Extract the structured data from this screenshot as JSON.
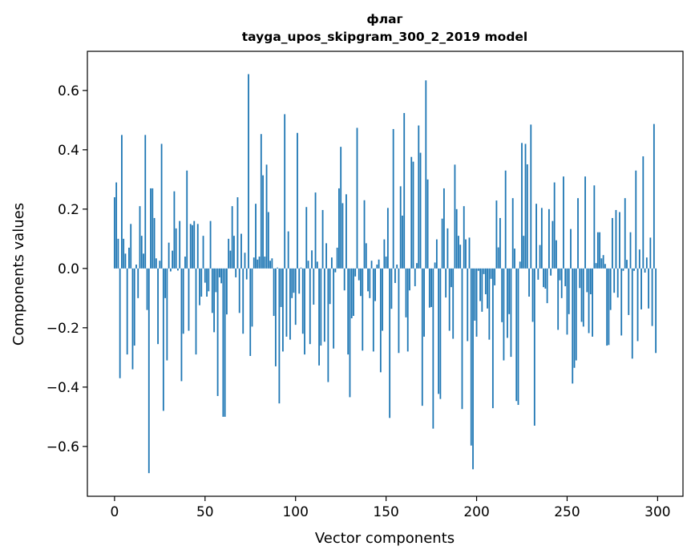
{
  "chart_data": {
    "type": "bar",
    "title": "флаг",
    "subtitle": "tayga_upos_skipgram_300_2_2019 model",
    "xlabel": "Vector components",
    "ylabel": "Components values",
    "xlim": [
      -15,
      314
    ],
    "ylim": [
      -0.768,
      0.732
    ],
    "xticks": [
      0,
      50,
      100,
      150,
      200,
      250,
      300
    ],
    "xtick_labels": [
      "0",
      "50",
      "100",
      "150",
      "200",
      "250",
      "300"
    ],
    "yticks": [
      -0.6,
      -0.4,
      -0.2,
      0.0,
      0.2,
      0.4,
      0.6
    ],
    "ytick_labels": [
      "−0.6",
      "−0.4",
      "−0.2",
      "0.0",
      "0.2",
      "0.4",
      "0.6"
    ],
    "grid": false,
    "bar_color": "#1f77b4",
    "values": [
      0.24,
      0.29,
      0.1,
      -0.37,
      0.45,
      0.1,
      0.05,
      -0.29,
      0.07,
      0.15,
      -0.34,
      -0.26,
      0.013,
      -0.1,
      0.21,
      0.11,
      0.05,
      0.45,
      -0.14,
      -0.69,
      0.27,
      0.27,
      0.17,
      0.034,
      -0.255,
      0.026,
      0.42,
      -0.48,
      -0.1,
      -0.31,
      0.087,
      -0.01,
      0.06,
      0.26,
      0.135,
      -0.007,
      0.16,
      -0.38,
      -0.22,
      0.04,
      0.33,
      -0.21,
      0.15,
      0.146,
      0.16,
      -0.29,
      0.15,
      -0.124,
      -0.095,
      0.11,
      -0.048,
      -0.095,
      -0.077,
      0.16,
      -0.15,
      -0.215,
      -0.08,
      -0.43,
      -0.03,
      -0.05,
      -0.5,
      -0.5,
      -0.155,
      0.1,
      0.06,
      0.21,
      0.11,
      -0.03,
      0.24,
      -0.15,
      0.117,
      -0.22,
      0.053,
      -0.037,
      0.655,
      -0.295,
      -0.196,
      0.037,
      0.218,
      0.03,
      0.04,
      0.453,
      0.314,
      0.04,
      0.35,
      0.19,
      0.026,
      0.034,
      -0.16,
      -0.33,
      0.003,
      -0.455,
      -0.13,
      -0.28,
      0.52,
      -0.23,
      0.125,
      -0.24,
      -0.1,
      -0.082,
      -0.19,
      0.457,
      -0.085,
      0.003,
      -0.22,
      -0.29,
      0.207,
      0.026,
      -0.255,
      0.061,
      -0.122,
      0.256,
      0.023,
      -0.327,
      -0.26,
      0.197,
      -0.247,
      0.085,
      -0.383,
      -0.12,
      0.037,
      -0.27,
      -0.013,
      0.07,
      0.27,
      0.41,
      0.22,
      -0.074,
      0.25,
      -0.29,
      -0.434,
      -0.168,
      -0.16,
      -0.027,
      0.474,
      -0.04,
      -0.093,
      -0.277,
      0.23,
      0.085,
      -0.077,
      -0.1,
      0.026,
      -0.28,
      -0.11,
      0.013,
      0.03,
      -0.35,
      -0.21,
      0.098,
      0.04,
      0.204,
      -0.504,
      -0.136,
      0.47,
      -0.049,
      0.013,
      -0.285,
      0.277,
      0.178,
      0.524,
      -0.165,
      -0.28,
      -0.074,
      0.376,
      0.36,
      -0.06,
      0.018,
      0.482,
      0.39,
      -0.463,
      -0.23,
      0.634,
      0.3,
      -0.132,
      -0.13,
      -0.54,
      0.02,
      0.098,
      -0.423,
      -0.44,
      0.168,
      0.27,
      -0.098,
      0.135,
      -0.21,
      -0.063,
      -0.237,
      0.35,
      0.2,
      0.11,
      0.08,
      -0.474,
      0.21,
      0.098,
      -0.245,
      0.104,
      -0.597,
      -0.677,
      -0.176,
      -0.23,
      -0.008,
      -0.11,
      -0.146,
      -0.019,
      -0.087,
      -0.135,
      -0.24,
      -0.035,
      -0.471,
      -0.057,
      0.229,
      0.071,
      0.17,
      -0.181,
      -0.31,
      0.33,
      -0.234,
      -0.154,
      -0.298,
      0.237,
      0.067,
      -0.447,
      -0.46,
      0.023,
      0.423,
      0.11,
      0.42,
      0.351,
      -0.095,
      0.485,
      -0.18,
      -0.53,
      0.218,
      -0.038,
      0.079,
      0.204,
      -0.063,
      -0.068,
      -0.117,
      0.2,
      -0.024,
      0.16,
      0.29,
      0.095,
      -0.207,
      -0.04,
      -0.1,
      0.31,
      -0.06,
      -0.223,
      -0.154,
      0.133,
      -0.388,
      -0.335,
      -0.31,
      0.237,
      -0.066,
      -0.18,
      -0.196,
      0.31,
      -0.08,
      -0.218,
      -0.087,
      -0.23,
      0.28,
      0.018,
      0.122,
      0.122,
      0.034,
      0.045,
      0.015,
      -0.26,
      -0.258,
      -0.14,
      0.17,
      -0.082,
      0.197,
      -0.098,
      0.19,
      -0.226,
      -0.008,
      0.237,
      0.029,
      -0.157,
      0.122,
      -0.304,
      -0.008,
      0.33,
      -0.245,
      0.064,
      -0.138,
      0.378,
      -0.014,
      0.037,
      -0.135,
      0.104,
      -0.194,
      0.487,
      -0.285
    ]
  }
}
